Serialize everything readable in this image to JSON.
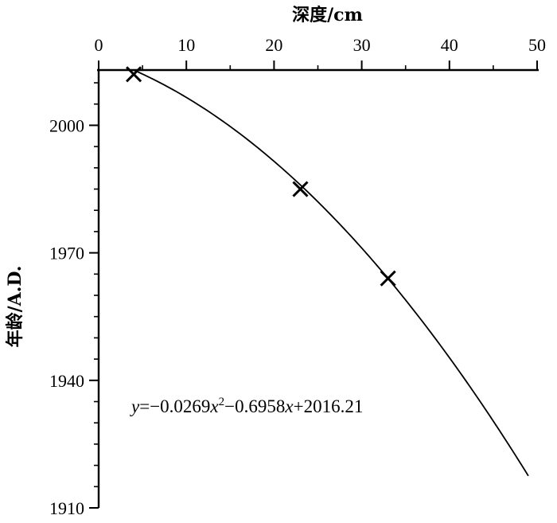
{
  "chart_data": {
    "type": "scatter",
    "xlabel": "深度/cm",
    "ylabel": "年龄/A.D.",
    "x_axis_position": "top",
    "y_axis_reversed": true,
    "xlim": [
      0,
      50
    ],
    "ylim": [
      2013,
      1910
    ],
    "x_ticks": [
      0,
      10,
      20,
      30,
      40,
      50
    ],
    "y_ticks": [
      2000,
      1970,
      1940,
      1910
    ],
    "x_ticks_minor_step": 5,
    "y_ticks_minor_step": 5,
    "grid": false,
    "points": [
      {
        "x": 4,
        "y": 2012
      },
      {
        "x": 23,
        "y": 1985
      },
      {
        "x": 33,
        "y": 1964
      }
    ],
    "fit": {
      "a": -0.0269,
      "b": -0.6958,
      "c": 2016.21,
      "x_range": [
        4,
        49
      ]
    },
    "equation": {
      "y": "y",
      "eq1": "=−0.0269",
      "x1": "x",
      "sup": "2",
      "mid": "−0.6958",
      "x2": "x",
      "tail": "+2016.21"
    }
  }
}
